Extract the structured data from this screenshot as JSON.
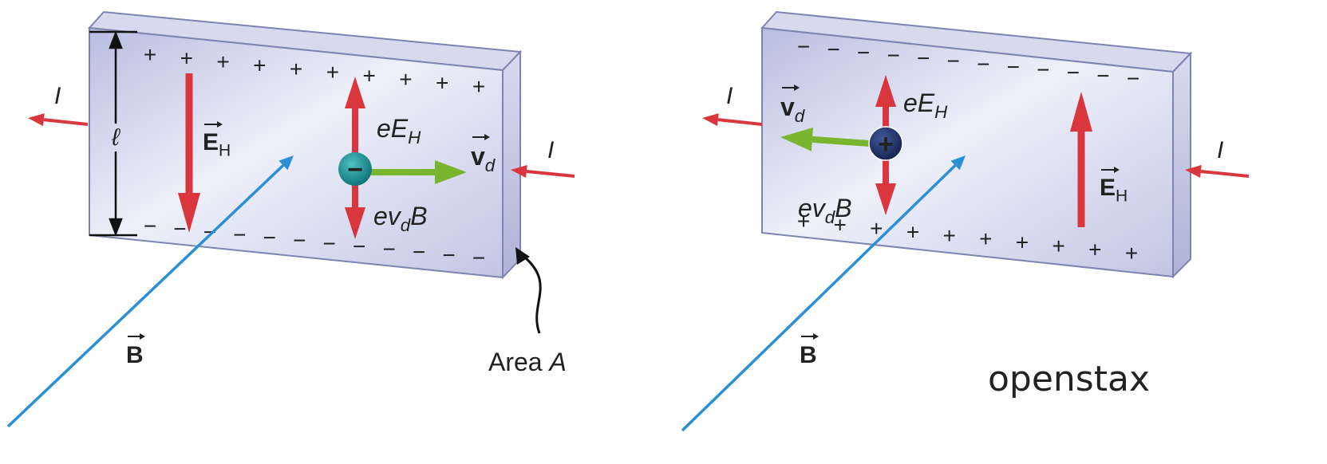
{
  "left": {
    "current_label": "I",
    "length_label": "ℓ",
    "field_label": {
      "base": "E",
      "sub": "H"
    },
    "electric_force": {
      "base": "eE",
      "sub": "H"
    },
    "magnetic_force": {
      "base": "ev",
      "sub": "d",
      "tail": "B"
    },
    "velocity": {
      "base": "v",
      "sub": "d"
    },
    "magnetic_field": "B",
    "area_label": {
      "text": "Area ",
      "var": "A"
    },
    "charge_sign": "−",
    "top_sign": "+",
    "bottom_sign": "−"
  },
  "right": {
    "current_label": "I",
    "field_label": {
      "base": "E",
      "sub": "H"
    },
    "electric_force": {
      "base": "eE",
      "sub": "H"
    },
    "magnetic_force": {
      "base": "ev",
      "sub": "d",
      "tail": "B"
    },
    "velocity": {
      "base": "v",
      "sub": "d"
    },
    "magnetic_field": "B",
    "charge_sign": "+",
    "top_sign": "−",
    "bottom_sign": "+"
  },
  "logo": "openstax"
}
